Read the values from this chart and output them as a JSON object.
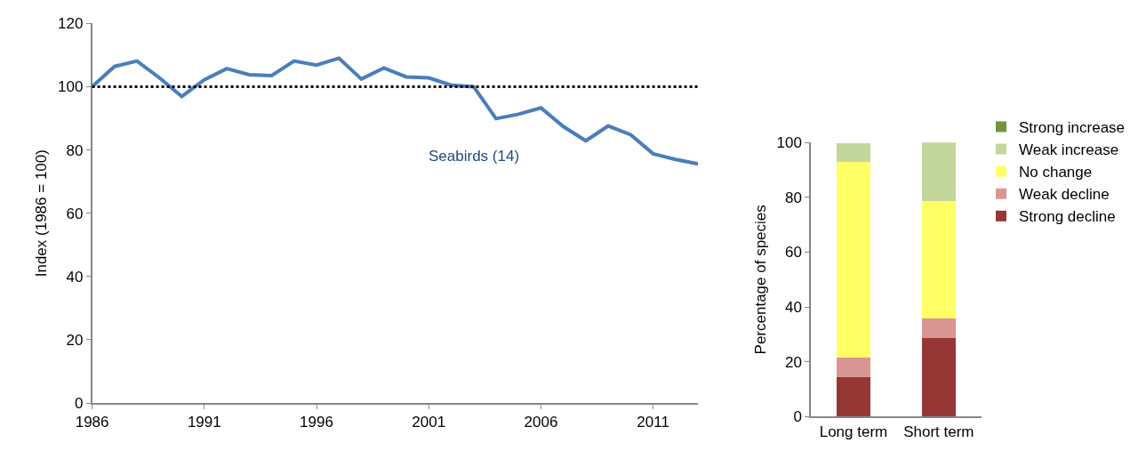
{
  "chart_data": [
    {
      "type": "line",
      "ylabel": "Index (1986 = 100)",
      "x": [
        1986,
        1987,
        1988,
        1989,
        1990,
        1991,
        1992,
        1993,
        1994,
        1995,
        1996,
        1997,
        1998,
        1999,
        2000,
        2001,
        2002,
        2003,
        2004,
        2005,
        2006,
        2007,
        2008,
        2009,
        2010,
        2011,
        2012,
        2013
      ],
      "series": [
        {
          "name": "Seabirds (14)",
          "color": "#4a7ebb",
          "values": [
            100,
            106.4,
            108.1,
            102.8,
            96.9,
            102.2,
            105.7,
            103.8,
            103.5,
            108.1,
            106.8,
            109,
            102.4,
            105.9,
            103.1,
            102.8,
            100.5,
            100,
            89.9,
            91.3,
            93.3,
            87.4,
            82.9,
            87.6,
            84.8,
            78.8,
            77,
            75.6
          ]
        }
      ],
      "xlim": [
        1986,
        2013
      ],
      "xticks": [
        1986,
        1991,
        1996,
        2001,
        2006,
        2011
      ],
      "ylim": [
        0,
        120
      ],
      "yticks": [
        0,
        20,
        40,
        60,
        80,
        100,
        120
      ],
      "ref_lines": [
        {
          "axis": "y",
          "value": 100,
          "color": "#000000",
          "line_style": "dotted"
        }
      ],
      "legend": false,
      "marker": "none",
      "line_style": "solid"
    },
    {
      "type": "bar",
      "ylabel": "Percentage of species",
      "categories": [
        "Long term",
        "Short term"
      ],
      "stacked": true,
      "series": [
        {
          "name": "Strong decline",
          "color": "#953735",
          "values": [
            14.3,
            28.6
          ]
        },
        {
          "name": "Weak decline",
          "color": "#d99694",
          "values": [
            7.1,
            7.1
          ]
        },
        {
          "name": "No change",
          "color": "#ffff66",
          "values": [
            71.4,
            42.9
          ]
        },
        {
          "name": "Weak increase",
          "color": "#c3d69b",
          "values": [
            7.1,
            21.4
          ]
        },
        {
          "name": "Strong increase",
          "color": "#77933c",
          "values": [
            0,
            0
          ]
        }
      ],
      "ylim": [
        0,
        100
      ],
      "yticks": [
        0,
        20,
        40,
        60,
        80,
        100
      ],
      "legend": "right"
    }
  ]
}
